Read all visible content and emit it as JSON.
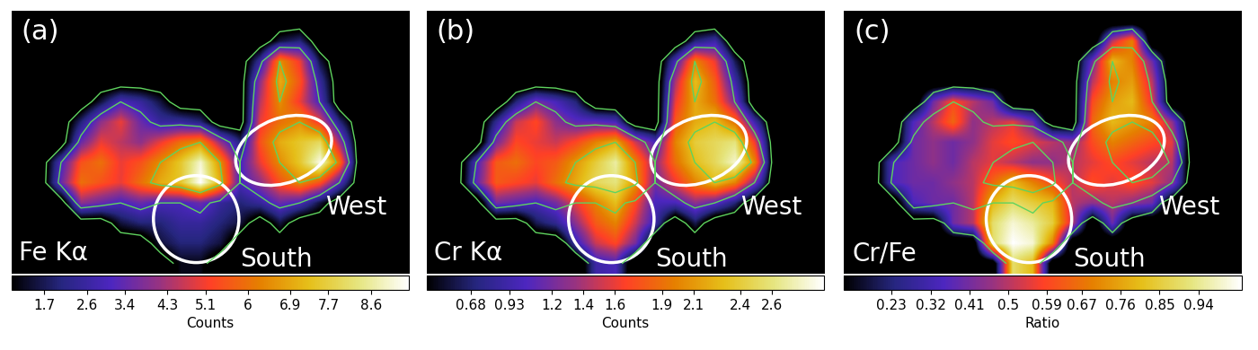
{
  "chart_data": [
    {
      "type": "heatmap",
      "title": "(a)",
      "label": "Fe Kα",
      "annotations": [
        "South",
        "West"
      ],
      "tick_labels": false,
      "contour_levels": [
        0.8,
        3.0,
        6.5
      ],
      "colorbar": {
        "label": "Counts",
        "range": [
          1.0,
          9.4
        ],
        "ticks": [
          1.7,
          2.6,
          3.4,
          4.3,
          5.1,
          6,
          6.9,
          7.7,
          8.6
        ]
      },
      "cells": [
        [
          0,
          0,
          0,
          0,
          0,
          0,
          0,
          0,
          0,
          0,
          0,
          0,
          0,
          0,
          0,
          0,
          0,
          0,
          0,
          0
        ],
        [
          0,
          0,
          0,
          0,
          0,
          0,
          0,
          0,
          0,
          0,
          0,
          0,
          0,
          1.5,
          2.0,
          0,
          0,
          0,
          0,
          0
        ],
        [
          0,
          0,
          0,
          0,
          0,
          0,
          0,
          0,
          0,
          0,
          0,
          0,
          2.5,
          6.5,
          5.0,
          1.5,
          0,
          0,
          0,
          0
        ],
        [
          0,
          0,
          0,
          0,
          0,
          0,
          0,
          0,
          0,
          0,
          0,
          0,
          4.0,
          7.0,
          5.5,
          2.5,
          0,
          0,
          0,
          0
        ],
        [
          0,
          0,
          0,
          0,
          1.5,
          3.0,
          2.5,
          1.5,
          0,
          0,
          0,
          0,
          4.5,
          6.5,
          5.0,
          3.0,
          0,
          0,
          0,
          0
        ],
        [
          0,
          0,
          0,
          2.0,
          4.0,
          5.0,
          3.5,
          2.5,
          2.5,
          2.0,
          0,
          0,
          5.0,
          6.0,
          6.5,
          5.0,
          2.0,
          0,
          0,
          0
        ],
        [
          0,
          0,
          0,
          3.5,
          5.0,
          4.5,
          4.0,
          5.0,
          6.0,
          6.5,
          4.0,
          2.0,
          5.5,
          7.0,
          7.5,
          8.0,
          4.0,
          0,
          0,
          0
        ],
        [
          0,
          0,
          3.0,
          5.5,
          6.0,
          5.0,
          5.5,
          6.5,
          7.5,
          9.0,
          6.5,
          3.0,
          5.0,
          6.5,
          7.5,
          9.2,
          6.0,
          0,
          0,
          0
        ],
        [
          0,
          0,
          3.5,
          6.0,
          5.5,
          5.0,
          6.0,
          7.0,
          7.5,
          9.4,
          7.0,
          3.0,
          4.0,
          5.5,
          6.5,
          5.5,
          3.0,
          0,
          0,
          0
        ],
        [
          0,
          0,
          0,
          4.0,
          3.5,
          3.0,
          3.5,
          3.0,
          3.0,
          3.5,
          2.5,
          2.0,
          2.5,
          3.5,
          3.0,
          1.5,
          0,
          0,
          0,
          0
        ],
        [
          0,
          0,
          0,
          0,
          0,
          1.5,
          2.0,
          2.0,
          2.5,
          2.5,
          2.0,
          1.5,
          0,
          1.5,
          0,
          0,
          0,
          0,
          0,
          0
        ],
        [
          0,
          0,
          0,
          0,
          0,
          0,
          0,
          1.5,
          2.0,
          2.0,
          1.5,
          0,
          0,
          0,
          0,
          0,
          0,
          0,
          0,
          0
        ],
        [
          0,
          0,
          0,
          0,
          0,
          0,
          0,
          0,
          1.2,
          1.2,
          0,
          0,
          0,
          0,
          0,
          0,
          0,
          0,
          0,
          0
        ]
      ]
    },
    {
      "type": "heatmap",
      "title": "(b)",
      "label": "Cr Kα",
      "annotations": [
        "South",
        "West"
      ],
      "tick_labels": false,
      "contour_levels": [
        0.8,
        3.0,
        6.5
      ],
      "colorbar": {
        "label": "Counts",
        "range": [
          0.4,
          2.93
        ],
        "ticks": [
          0.68,
          0.93,
          1.2,
          1.4,
          1.6,
          1.9,
          2.1,
          2.4,
          2.6
        ]
      },
      "cells": [
        [
          0,
          0,
          0,
          0,
          0,
          0,
          0,
          0,
          0,
          0,
          0,
          0,
          0,
          0,
          0,
          0,
          0,
          0,
          0,
          0
        ],
        [
          0,
          0,
          0,
          0,
          0,
          0,
          0,
          0,
          0,
          0,
          0,
          0,
          0,
          0.7,
          0.9,
          0,
          0,
          0,
          0,
          0
        ],
        [
          0,
          0,
          0,
          0,
          0,
          0,
          0,
          0,
          0,
          0,
          0,
          0,
          1.0,
          2.0,
          1.6,
          0.6,
          0,
          0,
          0,
          0
        ],
        [
          0,
          0,
          0,
          0,
          0,
          0,
          0,
          0,
          0,
          0,
          0,
          0,
          1.4,
          2.3,
          1.8,
          0.9,
          0,
          0,
          0,
          0
        ],
        [
          0,
          0,
          0,
          0,
          0.7,
          1.2,
          1.0,
          0.7,
          0,
          0,
          0,
          0,
          1.6,
          2.2,
          1.9,
          1.2,
          0,
          0,
          0,
          0
        ],
        [
          0,
          0,
          0,
          0.8,
          1.5,
          1.7,
          1.3,
          1.1,
          1.1,
          1.0,
          0,
          0,
          1.8,
          2.2,
          2.3,
          1.9,
          0.9,
          0,
          0,
          0
        ],
        [
          0,
          0,
          0,
          1.2,
          1.7,
          1.6,
          1.5,
          1.7,
          2.0,
          2.2,
          1.5,
          1.0,
          2.0,
          2.4,
          2.5,
          2.6,
          1.6,
          0,
          0,
          0
        ],
        [
          0,
          0,
          1.0,
          1.8,
          1.9,
          1.7,
          1.8,
          2.1,
          2.4,
          2.7,
          2.0,
          1.3,
          1.9,
          2.3,
          2.5,
          2.8,
          2.0,
          0,
          0,
          0
        ],
        [
          0,
          0,
          1.1,
          1.8,
          1.7,
          1.6,
          1.9,
          2.2,
          2.5,
          2.6,
          2.1,
          1.2,
          1.6,
          2.0,
          2.3,
          2.0,
          1.2,
          0,
          0,
          0
        ],
        [
          0,
          0,
          0,
          1.2,
          1.1,
          1.0,
          1.2,
          1.6,
          2.0,
          2.3,
          1.7,
          1.0,
          1.0,
          1.3,
          1.1,
          0.7,
          0,
          0,
          0,
          0
        ],
        [
          0,
          0,
          0,
          0,
          0,
          0.6,
          0.8,
          1.3,
          1.8,
          2.0,
          1.5,
          0.9,
          0,
          0.6,
          0,
          0,
          0,
          0,
          0,
          0
        ],
        [
          0,
          0,
          0,
          0,
          0,
          0,
          0,
          0.9,
          1.5,
          1.7,
          1.2,
          0,
          0,
          0,
          0,
          0,
          0,
          0,
          0,
          0
        ],
        [
          0,
          0,
          0,
          0,
          0,
          0,
          0,
          0,
          0.9,
          1.0,
          0,
          0,
          0,
          0,
          0,
          0,
          0,
          0,
          0,
          0
        ]
      ]
    },
    {
      "type": "heatmap",
      "title": "(c)",
      "label": "Cr/Fe",
      "annotations": [
        "South",
        "West"
      ],
      "tick_labels": false,
      "contour_levels": [
        0.8,
        3.0,
        6.5
      ],
      "colorbar": {
        "label": "Ratio",
        "range": [
          0.12,
          1.04
        ],
        "ticks": [
          0.23,
          0.32,
          0.41,
          0.5,
          0.59,
          0.67,
          0.76,
          0.85,
          0.94
        ]
      },
      "cells": [
        [
          0,
          0,
          0,
          0,
          0,
          0,
          0,
          0,
          0,
          0,
          0,
          0,
          0,
          0,
          0,
          0,
          0,
          0,
          0,
          0
        ],
        [
          0,
          0,
          0,
          0,
          0,
          0,
          0,
          0,
          0,
          0,
          0,
          0,
          0,
          0.5,
          0.7,
          0,
          0,
          0,
          0,
          0
        ],
        [
          0,
          0,
          0,
          0,
          0,
          0,
          0,
          0,
          0,
          0,
          0,
          0,
          0.4,
          0.8,
          0.7,
          0.4,
          0,
          0,
          0,
          0
        ],
        [
          0,
          0,
          0,
          0,
          0,
          0,
          0,
          0,
          0,
          0,
          0,
          0,
          0.5,
          0.7,
          0.75,
          0.5,
          0,
          0,
          0,
          0
        ],
        [
          0,
          0,
          0,
          0,
          0.4,
          0.6,
          0.5,
          0.4,
          0,
          0,
          0,
          0,
          0.6,
          0.75,
          0.8,
          0.55,
          0,
          0,
          0,
          0
        ],
        [
          0,
          0,
          0,
          0.35,
          0.5,
          0.65,
          0.45,
          0.5,
          0.55,
          0.4,
          0,
          0,
          0.65,
          0.8,
          0.75,
          0.7,
          0.45,
          0,
          0,
          0
        ],
        [
          0,
          0,
          0,
          0.4,
          0.45,
          0.4,
          0.45,
          0.55,
          0.6,
          0.55,
          0.5,
          0.45,
          0.6,
          0.7,
          0.65,
          0.6,
          0.55,
          0,
          0,
          0
        ],
        [
          0,
          0,
          0.35,
          0.4,
          0.45,
          0.4,
          0.5,
          0.55,
          0.5,
          0.45,
          0.45,
          0.5,
          0.55,
          0.6,
          0.55,
          0.5,
          0.5,
          0,
          0,
          0
        ],
        [
          0,
          0,
          0.35,
          0.4,
          0.4,
          0.45,
          0.5,
          0.65,
          0.8,
          0.7,
          0.6,
          0.5,
          0.6,
          0.55,
          0.6,
          0.55,
          0.45,
          0,
          0,
          0
        ],
        [
          0,
          0,
          0,
          0.35,
          0.4,
          0.4,
          0.5,
          0.8,
          0.9,
          0.85,
          0.8,
          0.5,
          0.45,
          0.5,
          0.45,
          0.4,
          0,
          0,
          0,
          0
        ],
        [
          0,
          0,
          0,
          0,
          0,
          0.4,
          0.5,
          0.9,
          1.0,
          0.95,
          0.85,
          0.5,
          0,
          0.4,
          0,
          0,
          0,
          0,
          0,
          0
        ],
        [
          0,
          0,
          0,
          0,
          0,
          0,
          0,
          0.9,
          1.04,
          1.0,
          0.7,
          0,
          0,
          0,
          0,
          0,
          0,
          0,
          0,
          0
        ],
        [
          0,
          0,
          0,
          0,
          0,
          0,
          0,
          0,
          0.9,
          0.8,
          0,
          0,
          0,
          0,
          0,
          0,
          0,
          0,
          0,
          0
        ]
      ]
    }
  ]
}
